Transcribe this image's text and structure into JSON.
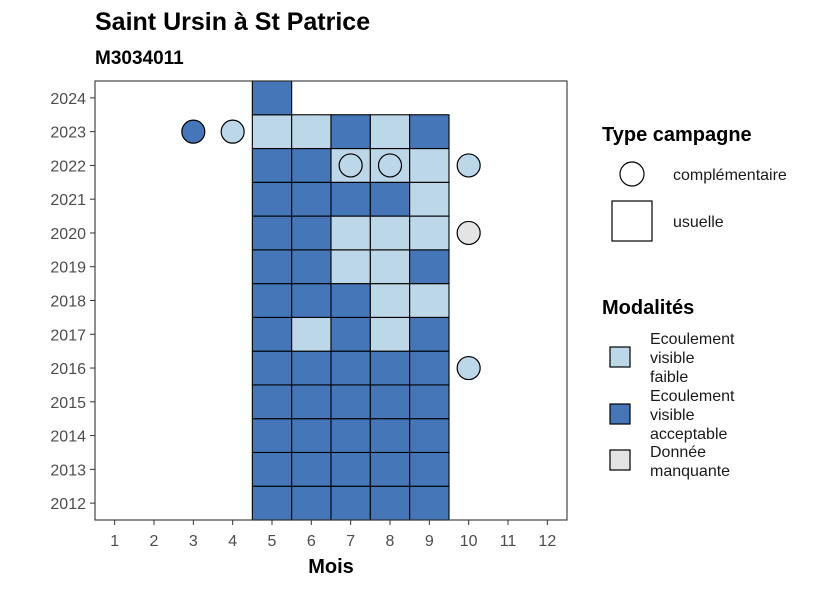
{
  "chart_data": {
    "type": "heatmap",
    "title": "Saint Ursin à St Patrice",
    "subtitle": "M3034011",
    "xlabel": "Mois",
    "ylabel": "",
    "x_ticks": [
      "1",
      "2",
      "3",
      "4",
      "5",
      "6",
      "7",
      "8",
      "9",
      "10",
      "11",
      "12"
    ],
    "y_ticks": [
      "2012",
      "2013",
      "2014",
      "2015",
      "2016",
      "2017",
      "2018",
      "2019",
      "2020",
      "2021",
      "2022",
      "2023",
      "2024"
    ],
    "xlim": [
      0.5,
      12.5
    ],
    "ylim": [
      2011.5,
      2024.5
    ],
    "grid": false,
    "legends": [
      {
        "title": "Type campagne",
        "position": "right",
        "items": [
          {
            "label": "complémentaire",
            "shape": "circle"
          },
          {
            "label": "usuelle",
            "shape": "square"
          }
        ]
      },
      {
        "title": "Modalités",
        "position": "right",
        "items": [
          {
            "label": [
              "Ecoulement",
              "visible",
              "faible"
            ],
            "category": "faible",
            "color": "#bcd7e8"
          },
          {
            "label": [
              "Ecoulement",
              "visible",
              "acceptable"
            ],
            "category": "acceptable",
            "color": "#4576b8"
          },
          {
            "label": [
              "Donnée",
              "manquante"
            ],
            "category": "manquante",
            "color": "#e4e4e4"
          }
        ]
      }
    ],
    "colors": {
      "faible": "#bcd7e8",
      "acceptable": "#4576b8",
      "manquante": "#e4e4e4"
    },
    "points": [
      {
        "year": 2012,
        "month": 5,
        "type": "usuelle",
        "value": "acceptable"
      },
      {
        "year": 2012,
        "month": 6,
        "type": "usuelle",
        "value": "acceptable"
      },
      {
        "year": 2012,
        "month": 7,
        "type": "usuelle",
        "value": "acceptable"
      },
      {
        "year": 2012,
        "month": 8,
        "type": "usuelle",
        "value": "acceptable"
      },
      {
        "year": 2012,
        "month": 9,
        "type": "usuelle",
        "value": "acceptable"
      },
      {
        "year": 2013,
        "month": 5,
        "type": "usuelle",
        "value": "acceptable"
      },
      {
        "year": 2013,
        "month": 6,
        "type": "usuelle",
        "value": "acceptable"
      },
      {
        "year": 2013,
        "month": 7,
        "type": "usuelle",
        "value": "acceptable"
      },
      {
        "year": 2013,
        "month": 8,
        "type": "usuelle",
        "value": "acceptable"
      },
      {
        "year": 2013,
        "month": 9,
        "type": "usuelle",
        "value": "acceptable"
      },
      {
        "year": 2014,
        "month": 5,
        "type": "usuelle",
        "value": "acceptable"
      },
      {
        "year": 2014,
        "month": 6,
        "type": "usuelle",
        "value": "acceptable"
      },
      {
        "year": 2014,
        "month": 7,
        "type": "usuelle",
        "value": "acceptable"
      },
      {
        "year": 2014,
        "month": 8,
        "type": "usuelle",
        "value": "acceptable"
      },
      {
        "year": 2014,
        "month": 9,
        "type": "usuelle",
        "value": "acceptable"
      },
      {
        "year": 2015,
        "month": 5,
        "type": "usuelle",
        "value": "acceptable"
      },
      {
        "year": 2015,
        "month": 6,
        "type": "usuelle",
        "value": "acceptable"
      },
      {
        "year": 2015,
        "month": 7,
        "type": "usuelle",
        "value": "acceptable"
      },
      {
        "year": 2015,
        "month": 8,
        "type": "usuelle",
        "value": "acceptable"
      },
      {
        "year": 2015,
        "month": 9,
        "type": "usuelle",
        "value": "acceptable"
      },
      {
        "year": 2016,
        "month": 5,
        "type": "usuelle",
        "value": "acceptable"
      },
      {
        "year": 2016,
        "month": 6,
        "type": "usuelle",
        "value": "acceptable"
      },
      {
        "year": 2016,
        "month": 7,
        "type": "usuelle",
        "value": "acceptable"
      },
      {
        "year": 2016,
        "month": 8,
        "type": "usuelle",
        "value": "acceptable"
      },
      {
        "year": 2016,
        "month": 9,
        "type": "usuelle",
        "value": "acceptable"
      },
      {
        "year": 2016,
        "month": 10,
        "type": "complémentaire",
        "value": "faible"
      },
      {
        "year": 2017,
        "month": 5,
        "type": "usuelle",
        "value": "acceptable"
      },
      {
        "year": 2017,
        "month": 6,
        "type": "usuelle",
        "value": "faible"
      },
      {
        "year": 2017,
        "month": 7,
        "type": "usuelle",
        "value": "acceptable"
      },
      {
        "year": 2017,
        "month": 8,
        "type": "usuelle",
        "value": "faible"
      },
      {
        "year": 2017,
        "month": 9,
        "type": "usuelle",
        "value": "acceptable"
      },
      {
        "year": 2018,
        "month": 5,
        "type": "usuelle",
        "value": "acceptable"
      },
      {
        "year": 2018,
        "month": 6,
        "type": "usuelle",
        "value": "acceptable"
      },
      {
        "year": 2018,
        "month": 7,
        "type": "usuelle",
        "value": "acceptable"
      },
      {
        "year": 2018,
        "month": 8,
        "type": "usuelle",
        "value": "faible"
      },
      {
        "year": 2018,
        "month": 9,
        "type": "usuelle",
        "value": "faible"
      },
      {
        "year": 2019,
        "month": 5,
        "type": "usuelle",
        "value": "acceptable"
      },
      {
        "year": 2019,
        "month": 6,
        "type": "usuelle",
        "value": "acceptable"
      },
      {
        "year": 2019,
        "month": 7,
        "type": "usuelle",
        "value": "faible"
      },
      {
        "year": 2019,
        "month": 8,
        "type": "usuelle",
        "value": "faible"
      },
      {
        "year": 2019,
        "month": 9,
        "type": "usuelle",
        "value": "acceptable"
      },
      {
        "year": 2020,
        "month": 5,
        "type": "usuelle",
        "value": "acceptable"
      },
      {
        "year": 2020,
        "month": 6,
        "type": "usuelle",
        "value": "acceptable"
      },
      {
        "year": 2020,
        "month": 7,
        "type": "usuelle",
        "value": "faible"
      },
      {
        "year": 2020,
        "month": 8,
        "type": "usuelle",
        "value": "faible"
      },
      {
        "year": 2020,
        "month": 9,
        "type": "usuelle",
        "value": "faible"
      },
      {
        "year": 2020,
        "month": 10,
        "type": "complémentaire",
        "value": "manquante"
      },
      {
        "year": 2021,
        "month": 5,
        "type": "usuelle",
        "value": "acceptable"
      },
      {
        "year": 2021,
        "month": 6,
        "type": "usuelle",
        "value": "acceptable"
      },
      {
        "year": 2021,
        "month": 7,
        "type": "usuelle",
        "value": "acceptable"
      },
      {
        "year": 2021,
        "month": 8,
        "type": "usuelle",
        "value": "acceptable"
      },
      {
        "year": 2021,
        "month": 9,
        "type": "usuelle",
        "value": "faible"
      },
      {
        "year": 2022,
        "month": 5,
        "type": "usuelle",
        "value": "acceptable"
      },
      {
        "year": 2022,
        "month": 6,
        "type": "usuelle",
        "value": "acceptable"
      },
      {
        "year": 2022,
        "month": 7,
        "type": "usuelle",
        "value": "faible"
      },
      {
        "year": 2022,
        "month": 8,
        "type": "usuelle",
        "value": "faible"
      },
      {
        "year": 2022,
        "month": 9,
        "type": "usuelle",
        "value": "faible"
      },
      {
        "year": 2022,
        "month": 7,
        "type": "complémentaire",
        "value": "faible"
      },
      {
        "year": 2022,
        "month": 8,
        "type": "complémentaire",
        "value": "faible"
      },
      {
        "year": 2022,
        "month": 10,
        "type": "complémentaire",
        "value": "faible"
      },
      {
        "year": 2023,
        "month": 3,
        "type": "complémentaire",
        "value": "acceptable"
      },
      {
        "year": 2023,
        "month": 4,
        "type": "complémentaire",
        "value": "faible"
      },
      {
        "year": 2023,
        "month": 5,
        "type": "usuelle",
        "value": "faible"
      },
      {
        "year": 2023,
        "month": 6,
        "type": "usuelle",
        "value": "faible"
      },
      {
        "year": 2023,
        "month": 7,
        "type": "usuelle",
        "value": "acceptable"
      },
      {
        "year": 2023,
        "month": 8,
        "type": "usuelle",
        "value": "faible"
      },
      {
        "year": 2023,
        "month": 9,
        "type": "usuelle",
        "value": "acceptable"
      },
      {
        "year": 2024,
        "month": 5,
        "type": "usuelle",
        "value": "acceptable"
      }
    ]
  }
}
